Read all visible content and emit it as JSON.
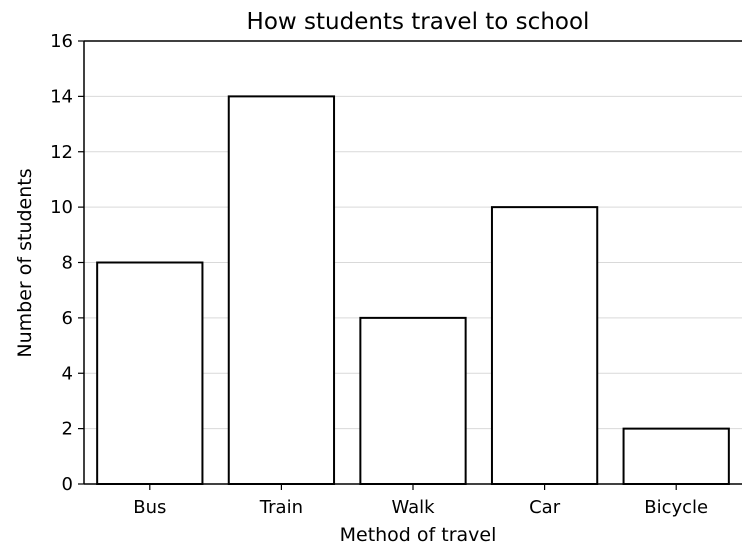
{
  "chart_data": {
    "type": "bar",
    "title": "How students travel to school",
    "xlabel": "Method of travel",
    "ylabel": "Number of students",
    "categories": [
      "Bus",
      "Train",
      "Walk",
      "Car",
      "Bicycle"
    ],
    "values": [
      8,
      14,
      6,
      10,
      2
    ],
    "ylim": [
      0,
      16
    ],
    "yticks": [
      0,
      2,
      4,
      6,
      8,
      10,
      12,
      14,
      16
    ],
    "grid": "horizontal",
    "colors": {
      "bar_fill": "#ffffff",
      "bar_edge": "#000000",
      "grid": "#d9d9d9"
    }
  }
}
